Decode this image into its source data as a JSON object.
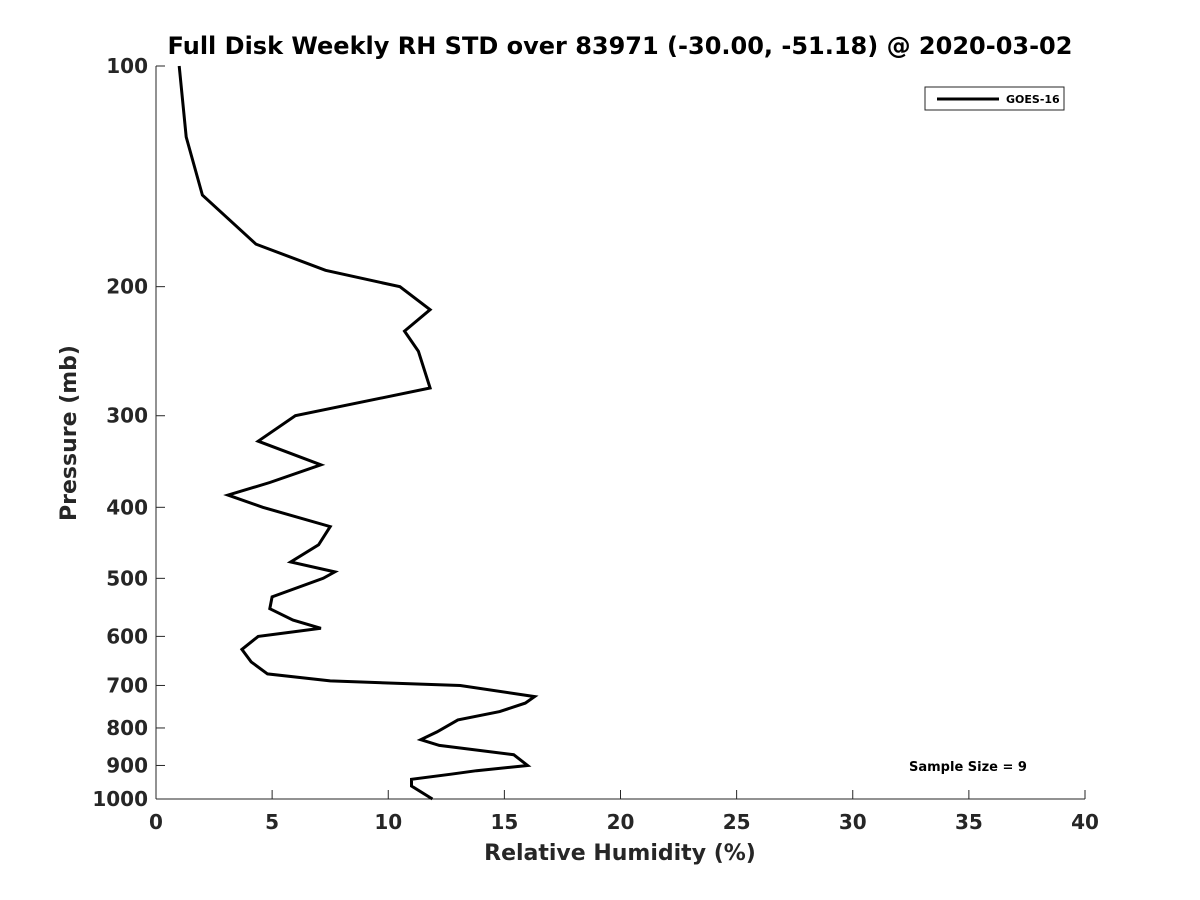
{
  "chart_data": {
    "type": "line",
    "title": "Full Disk Weekly RH STD over 83971 (-30.00, -51.18) @ 2020-03-02",
    "xlabel": "Relative Humidity (%)",
    "ylabel": "Pressure (mb)",
    "xlim": [
      0,
      40
    ],
    "ylim": [
      100,
      1000
    ],
    "yscale": "log",
    "y_reversed": true,
    "x_ticks": [
      0,
      5,
      10,
      15,
      20,
      25,
      30,
      35,
      40
    ],
    "y_ticks": [
      100,
      200,
      300,
      400,
      500,
      600,
      700,
      800,
      900,
      1000
    ],
    "grid": false,
    "legend_position": "top-right",
    "annotation": "Sample Size = 9",
    "series": [
      {
        "name": "GOES-16",
        "color": "#000000",
        "points": [
          [
            1.0,
            100
          ],
          [
            1.3,
            125
          ],
          [
            2.0,
            150
          ],
          [
            4.3,
            175
          ],
          [
            7.3,
            190
          ],
          [
            10.5,
            200
          ],
          [
            11.8,
            215
          ],
          [
            10.7,
            230
          ],
          [
            11.3,
            245
          ],
          [
            11.8,
            275
          ],
          [
            6.0,
            300
          ],
          [
            4.4,
            325
          ],
          [
            7.1,
            350
          ],
          [
            4.9,
            370
          ],
          [
            3.1,
            385
          ],
          [
            4.6,
            400
          ],
          [
            7.5,
            425
          ],
          [
            7.0,
            450
          ],
          [
            5.8,
            475
          ],
          [
            7.7,
            490
          ],
          [
            7.2,
            500
          ],
          [
            5.0,
            530
          ],
          [
            4.9,
            550
          ],
          [
            5.9,
            570
          ],
          [
            7.1,
            585
          ],
          [
            4.4,
            600
          ],
          [
            3.7,
            625
          ],
          [
            4.1,
            650
          ],
          [
            4.8,
            675
          ],
          [
            7.5,
            690
          ],
          [
            13.1,
            700
          ],
          [
            16.3,
            725
          ],
          [
            15.9,
            740
          ],
          [
            14.8,
            760
          ],
          [
            13.0,
            780
          ],
          [
            12.1,
            810
          ],
          [
            11.4,
            830
          ],
          [
            12.2,
            845
          ],
          [
            15.4,
            870
          ],
          [
            16.0,
            900
          ],
          [
            13.8,
            915
          ],
          [
            12.7,
            925
          ],
          [
            11.0,
            940
          ],
          [
            11.0,
            960
          ],
          [
            11.9,
            1000
          ]
        ]
      }
    ]
  }
}
